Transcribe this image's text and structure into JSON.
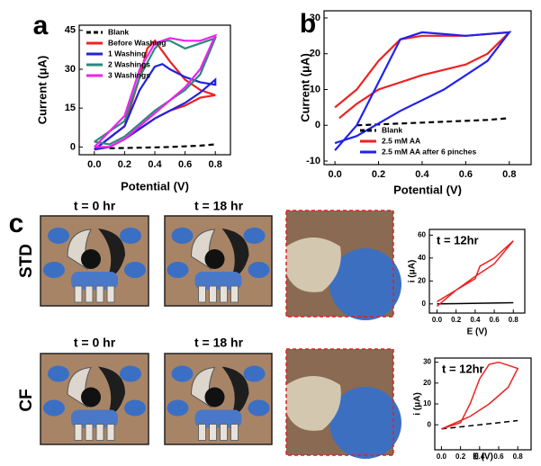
{
  "figure": {
    "panel_labels": [
      "a",
      "b",
      "c"
    ],
    "row_labels": [
      "STD",
      "CF"
    ],
    "time_labels": [
      "t = 0 hr",
      "t = 18 hr",
      "t = 0 hr",
      "t = 18 hr"
    ]
  },
  "chart_data": [
    {
      "type": "line",
      "xlabel": "Potential (V)",
      "ylabel": "Current (μA)",
      "legend": "upper left",
      "xlim": [
        -0.1,
        0.9
      ],
      "ylim": [
        -3,
        47
      ],
      "xticks": [
        {
          "value": 0,
          "label": "0.0"
        },
        0.2,
        0.4,
        0.6,
        0.8
      ],
      "yticks": [
        0,
        15,
        30,
        45
      ],
      "series": [
        {
          "name": "Blank",
          "color": "#000000",
          "dash": true,
          "x": [
            0.1,
            0.3,
            0.5,
            0.7,
            0.8
          ],
          "values": [
            -0.5,
            -0.3,
            0,
            0.5,
            1
          ]
        },
        {
          "name": "Before Washing",
          "color": "#ee2222",
          "dash": false,
          "x": [
            0,
            0.2,
            0.3,
            0.35,
            0.4,
            0.5,
            0.6,
            0.7,
            0.8,
            0.7,
            0.6,
            0.5,
            0.4,
            0.3,
            0.2,
            0.1,
            0
          ],
          "values": [
            -1,
            8,
            27,
            38,
            41,
            33,
            26,
            22,
            20,
            19,
            16,
            14,
            11,
            7,
            3,
            0,
            -1
          ]
        },
        {
          "name": "1 Washing",
          "color": "#2222dd",
          "dash": false,
          "x": [
            0,
            0.2,
            0.3,
            0.4,
            0.45,
            0.5,
            0.6,
            0.7,
            0.8,
            0.8,
            0.7,
            0.6,
            0.5,
            0.4,
            0.3,
            0.2,
            0.1,
            0
          ],
          "values": [
            -1,
            8,
            22,
            31,
            32,
            30,
            27,
            25,
            24,
            26,
            21,
            17,
            14,
            11,
            7,
            3,
            0,
            -1
          ]
        },
        {
          "name": "2 Washings",
          "color": "#2a8a7a",
          "dash": false,
          "x": [
            0,
            0.2,
            0.3,
            0.4,
            0.45,
            0.5,
            0.6,
            0.7,
            0.8,
            0.7,
            0.6,
            0.5,
            0.4,
            0.3,
            0.2,
            0.1,
            0
          ],
          "values": [
            2,
            10,
            27,
            38,
            41,
            41,
            38,
            40,
            42,
            28,
            22,
            18,
            14,
            9,
            4,
            1,
            2
          ]
        },
        {
          "name": "3 Washings",
          "color": "#ee22ee",
          "dash": false,
          "x": [
            0,
            0.2,
            0.3,
            0.4,
            0.5,
            0.6,
            0.7,
            0.8,
            0.7,
            0.6,
            0.5,
            0.4,
            0.3,
            0.2,
            0.1,
            0
          ],
          "values": [
            0,
            12,
            30,
            40,
            42,
            41,
            41,
            43,
            30,
            23,
            18,
            13,
            8,
            3,
            0,
            0
          ]
        }
      ]
    },
    {
      "type": "line",
      "xlabel": "Potential (V)",
      "ylabel": "Current (μA)",
      "legend": "lower right",
      "xlim": [
        -0.05,
        0.9
      ],
      "ylim": [
        -11,
        32
      ],
      "xticks": [
        {
          "value": 0,
          "label": "0.0"
        },
        0.2,
        0.4,
        0.6,
        0.8
      ],
      "yticks": [
        -10,
        0,
        10,
        20,
        30
      ],
      "series": [
        {
          "name": "Blank",
          "color": "#000000",
          "dash": true,
          "x": [
            0.1,
            0.3,
            0.5,
            0.7,
            0.8
          ],
          "values": [
            0,
            0.5,
            1,
            1.5,
            2
          ]
        },
        {
          "name": "2.5 mM AA",
          "color": "#ee2222",
          "dash": false,
          "x": [
            0,
            0.1,
            0.2,
            0.3,
            0.4,
            0.6,
            0.8,
            0.7,
            0.6,
            0.4,
            0.2,
            0.1,
            0.02
          ],
          "values": [
            5,
            10,
            18,
            24,
            25,
            25,
            26,
            20,
            17,
            14,
            10,
            6,
            2
          ]
        },
        {
          "name": "2.5 mM AA after 6 pinches",
          "color": "#2222ee",
          "dash": false,
          "x": [
            0,
            0.1,
            0.2,
            0.3,
            0.4,
            0.6,
            0.8,
            0.7,
            0.5,
            0.3,
            0.1,
            0
          ],
          "values": [
            -7,
            0,
            12,
            24,
            26,
            25,
            26,
            18,
            10,
            4,
            -3,
            -5
          ]
        }
      ]
    },
    {
      "type": "line",
      "title": "t = 12hr",
      "xlabel": "E (V)",
      "ylabel": "i (μA)",
      "xlim": [
        -0.08,
        0.92
      ],
      "ylim": [
        -8,
        65
      ],
      "xticks": [
        {
          "value": 0,
          "label": "0.0"
        },
        0.2,
        0.4,
        0.6,
        0.8
      ],
      "yticks": [
        0,
        20,
        40,
        60
      ],
      "series": [
        {
          "color": "#000000",
          "dash": false,
          "x": [
            0,
            0.8
          ],
          "values": [
            0,
            1
          ]
        },
        {
          "color": "#ee2222",
          "dash": false,
          "x": [
            0,
            0.2,
            0.4,
            0.45,
            0.6,
            0.8,
            0.6,
            0.4,
            0.2,
            0
          ],
          "values": [
            2,
            12,
            22,
            33,
            40,
            55,
            35,
            24,
            12,
            -2
          ]
        }
      ]
    },
    {
      "type": "line",
      "title": "t = 12hr",
      "xlabel": "E (V)",
      "ylabel": "i (μA)",
      "xlim": [
        -0.07,
        0.94
      ],
      "ylim": [
        -12,
        32
      ],
      "xticks": [
        {
          "value": 0,
          "label": "0.0"
        },
        0.2,
        0.4,
        0.6,
        0.8
      ],
      "yticks": [
        0,
        10,
        20,
        30
      ],
      "series": [
        {
          "color": "#000000",
          "dash": true,
          "x": [
            0,
            0.2,
            0.4,
            0.6,
            0.8
          ],
          "values": [
            -2,
            -1,
            0,
            1,
            2
          ]
        },
        {
          "color": "#ee2222",
          "dash": false,
          "x": [
            0,
            0.2,
            0.3,
            0.4,
            0.5,
            0.6,
            0.8,
            0.7,
            0.5,
            0.3,
            0.1,
            0
          ],
          "values": [
            -2,
            1,
            10,
            22,
            29,
            30,
            27,
            18,
            10,
            4,
            0,
            -2
          ]
        }
      ]
    }
  ]
}
